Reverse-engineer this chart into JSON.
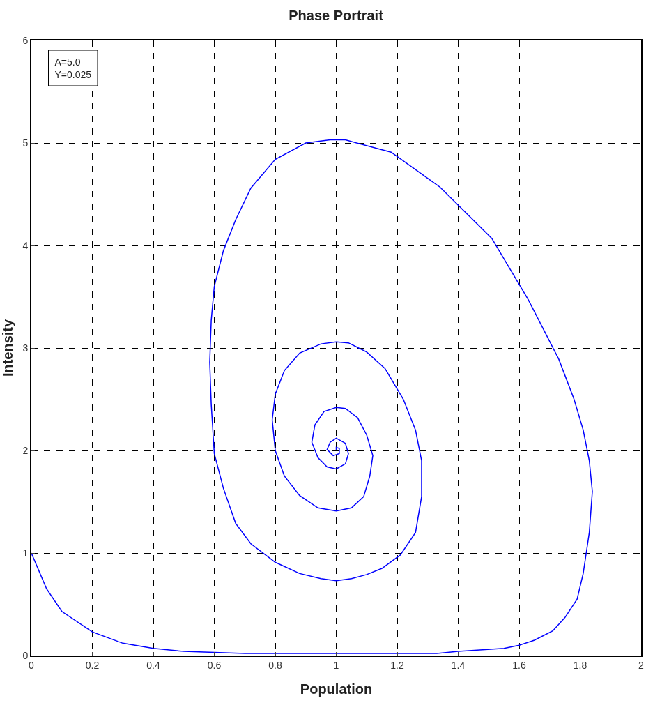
{
  "chart_data": {
    "type": "line",
    "title": "Phase Portrait",
    "xlabel": "Population",
    "ylabel": "Intensity",
    "annotations": [
      "A=5.0",
      "Y=0.025"
    ],
    "x": [
      0,
      0.05,
      0.1,
      0.2,
      0.3,
      0.4,
      0.5,
      0.6,
      0.7,
      1.0,
      1.33,
      1.4,
      1.55,
      1.6,
      1.65,
      1.71,
      1.75,
      1.79,
      1.81,
      1.83,
      1.84,
      1.83,
      1.81,
      1.78,
      1.73,
      1.63,
      1.51,
      1.34,
      1.18,
      1.03,
      0.98,
      0.9,
      0.8,
      0.72,
      0.67,
      0.63,
      0.6,
      0.59,
      0.585,
      0.59,
      0.6,
      0.63,
      0.67,
      0.72,
      0.8,
      0.88,
      0.95,
      1.0,
      1.05,
      1.1,
      1.15,
      1.21,
      1.26,
      1.28,
      1.28,
      1.26,
      1.22,
      1.16,
      1.1,
      1.04,
      1.0,
      0.95,
      0.88,
      0.83,
      0.8,
      0.79,
      0.8,
      0.83,
      0.88,
      0.94,
      1.0,
      1.05,
      1.09,
      1.11,
      1.12,
      1.1,
      1.07,
      1.03,
      1.0,
      0.96,
      0.93,
      0.92,
      0.94,
      0.97,
      1.0,
      1.03,
      1.04,
      1.03,
      1.0,
      0.98,
      0.97,
      0.99,
      1.01,
      1.01,
      1.0,
      1.0
    ],
    "series": [
      {
        "color": "#0000ff",
        "values": [
          1,
          0.65,
          0.43,
          0.23,
          0.12,
          0.07,
          0.04,
          0.03,
          0.02,
          0.02,
          0.02,
          0.04,
          0.07,
          0.1,
          0.15,
          0.24,
          0.37,
          0.55,
          0.8,
          1.2,
          1.6,
          1.9,
          2.2,
          2.5,
          2.89,
          3.47,
          4.07,
          4.57,
          4.91,
          5.03,
          5.03,
          5.0,
          4.84,
          4.56,
          4.25,
          3.95,
          3.6,
          3.27,
          2.86,
          2.45,
          1.97,
          1.63,
          1.29,
          1.09,
          0.91,
          0.8,
          0.75,
          0.73,
          0.75,
          0.79,
          0.85,
          0.98,
          1.2,
          1.55,
          1.9,
          2.2,
          2.5,
          2.8,
          2.96,
          3.05,
          3.06,
          3.04,
          2.95,
          2.78,
          2.55,
          2.3,
          2.0,
          1.75,
          1.56,
          1.44,
          1.41,
          1.44,
          1.55,
          1.75,
          1.95,
          2.15,
          2.32,
          2.41,
          2.42,
          2.38,
          2.25,
          2.08,
          1.93,
          1.84,
          1.82,
          1.87,
          1.97,
          2.07,
          2.12,
          2.08,
          2.01,
          1.95,
          1.97,
          2.02,
          2.03,
          2.0
        ]
      }
    ],
    "xlim": [
      0,
      2
    ],
    "xticks": [
      0,
      0.2,
      0.4,
      0.6,
      0.8,
      1,
      1.2,
      1.4,
      1.6,
      1.8,
      2
    ],
    "ylim": [
      0,
      6
    ],
    "yticks": [
      0,
      1,
      2,
      3,
      4,
      5,
      6
    ],
    "grid": true,
    "legend": false,
    "marker": "none",
    "line_style": "solid"
  }
}
